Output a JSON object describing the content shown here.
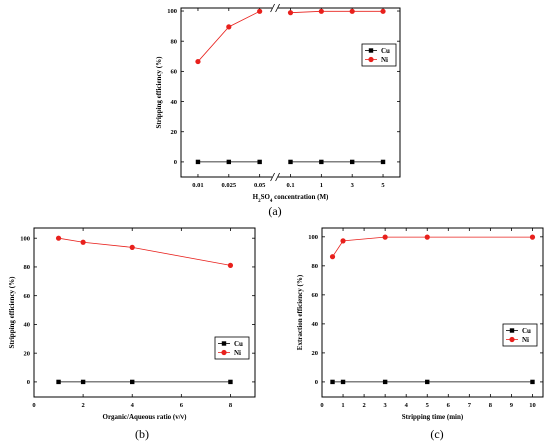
{
  "chart_data": [
    {
      "panel": "(a)",
      "type": "line",
      "categories": [
        "0.01",
        "0.025",
        "0.05",
        "0.1",
        "1",
        "3",
        "5"
      ],
      "ylim": [
        0,
        100
      ],
      "yticks": [
        "0",
        "20",
        "40",
        "60",
        "80",
        "100"
      ],
      "xlabel": "H2SO4 concentration (M)",
      "xlabel_parts": [
        "H",
        "2",
        "SO",
        "4",
        " concentration (M)"
      ],
      "ylabel": "Stripping efficiency (%)",
      "axis_break_between": [
        "0.05",
        "0.1"
      ],
      "legend_position": "top-right",
      "series": [
        {
          "name": "Cu",
          "marker": "square",
          "color": "#000000",
          "values": [
            0,
            0,
            0,
            0,
            0,
            0,
            0
          ]
        },
        {
          "name": "Ni",
          "marker": "circle",
          "color": "#e8201c",
          "values": [
            66.5,
            89.5,
            99.8,
            98.9,
            99.8,
            99.8,
            99.8
          ]
        }
      ]
    },
    {
      "panel": "(b)",
      "type": "line",
      "x": [
        1,
        2,
        4,
        8
      ],
      "xlim": [
        0,
        9
      ],
      "xticks": [
        "0",
        "2",
        "4",
        "6",
        "8"
      ],
      "ylim": [
        0,
        105
      ],
      "yticks": [
        "0",
        "20",
        "40",
        "60",
        "80",
        "100"
      ],
      "xlabel": "Organic/Aqueous ratio (v/v)",
      "ylabel": "Stripping efficiency (%)",
      "legend_position": "bottom-right",
      "series": [
        {
          "name": "Cu",
          "marker": "square",
          "color": "#000000",
          "values": [
            0,
            0,
            0,
            0
          ]
        },
        {
          "name": "Ni",
          "marker": "circle",
          "color": "#e8201c",
          "values": [
            100,
            97.2,
            93.6,
            81.1
          ]
        }
      ]
    },
    {
      "panel": "(c)",
      "type": "line",
      "x": [
        0.5,
        1,
        3,
        5,
        10
      ],
      "xlim": [
        0,
        10.5
      ],
      "xticks": [
        "0",
        "1",
        "2",
        "3",
        "4",
        "5",
        "6",
        "7",
        "8",
        "9",
        "10"
      ],
      "ylim": [
        0,
        104
      ],
      "yticks": [
        "0",
        "20",
        "40",
        "60",
        "80",
        "100"
      ],
      "xlabel": "Stripping time (min)",
      "ylabel": "Extraction efficiency (%)",
      "legend_position": "right",
      "series": [
        {
          "name": "Cu",
          "marker": "square",
          "color": "#000000",
          "values": [
            0,
            0,
            0,
            0,
            0
          ]
        },
        {
          "name": "Ni",
          "marker": "circle",
          "color": "#e8201c",
          "values": [
            86.3,
            97.2,
            99.8,
            99.8,
            99.8
          ]
        }
      ]
    }
  ]
}
